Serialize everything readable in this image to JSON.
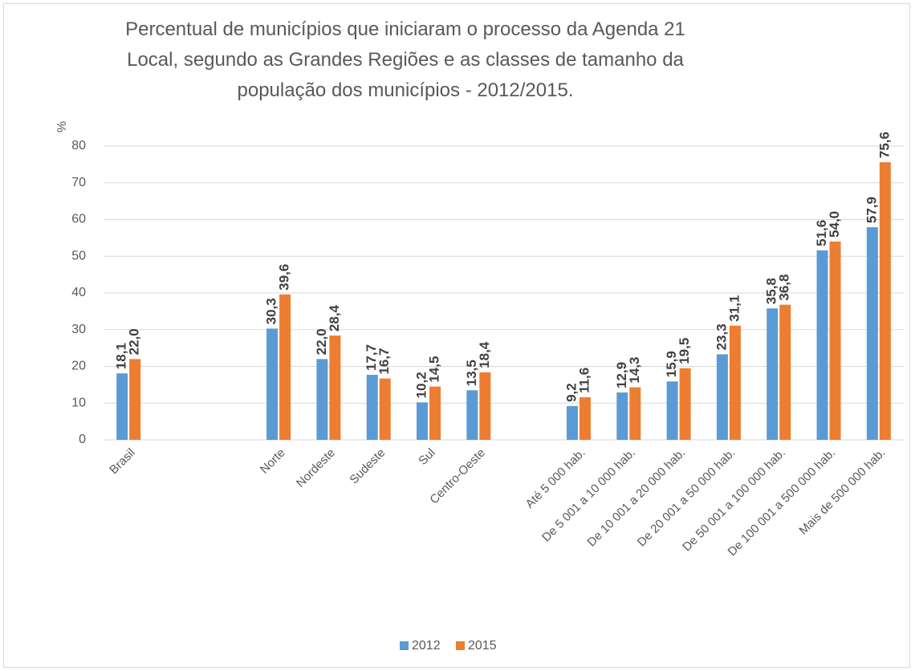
{
  "chart_data": {
    "type": "bar",
    "title": "Percentual de municípios que iniciaram o processo da Agenda 21 Local, segundo as Grandes Regiões e as classes de tamanho da população dos municípios - 2012/2015.",
    "y_label": "%",
    "categories": [
      "Brasil",
      null,
      null,
      "Norte",
      "Nordeste",
      "Sudeste",
      "Sul",
      "Centro-Oeste",
      null,
      "Até 5 000 hab.",
      "De 5 001 a 10 000 hab.",
      "De 10 001 a 20 000 hab.",
      "De 20 001 a 50 000 hab.",
      "De 50 001 a 100 000 hab.",
      "De 100 001 a 500 000 hab.",
      "Mais de 500 000 hab."
    ],
    "series": [
      {
        "name": "2012",
        "color": "#5b9bd5",
        "values": [
          18.1,
          null,
          null,
          30.3,
          22.0,
          17.7,
          10.2,
          13.5,
          null,
          9.2,
          12.9,
          15.9,
          23.3,
          35.8,
          51.6,
          57.9
        ],
        "value_labels": [
          "18,1",
          null,
          null,
          "30,3",
          "22,0",
          "17,7",
          "10,2",
          "13,5",
          null,
          "9,2",
          "12,9",
          "15,9",
          "23,3",
          "35,8",
          "51,6",
          "57,9"
        ]
      },
      {
        "name": "2015",
        "color": "#ed7d31",
        "values": [
          22.0,
          null,
          null,
          39.6,
          28.4,
          16.7,
          14.5,
          18.4,
          null,
          11.6,
          14.3,
          19.5,
          31.1,
          36.8,
          54.0,
          75.6
        ],
        "value_labels": [
          "22,0",
          null,
          null,
          "39,6",
          "28,4",
          "16,7",
          "14,5",
          "18,4",
          null,
          "11,6",
          "14,3",
          "19,5",
          "31,1",
          "36,8",
          "54,0",
          "75,6"
        ]
      }
    ],
    "ylim": [
      0,
      80
    ],
    "yticks": [
      0,
      10,
      20,
      30,
      40,
      50,
      60,
      70,
      80
    ],
    "grid": true,
    "legend": "bottom"
  }
}
